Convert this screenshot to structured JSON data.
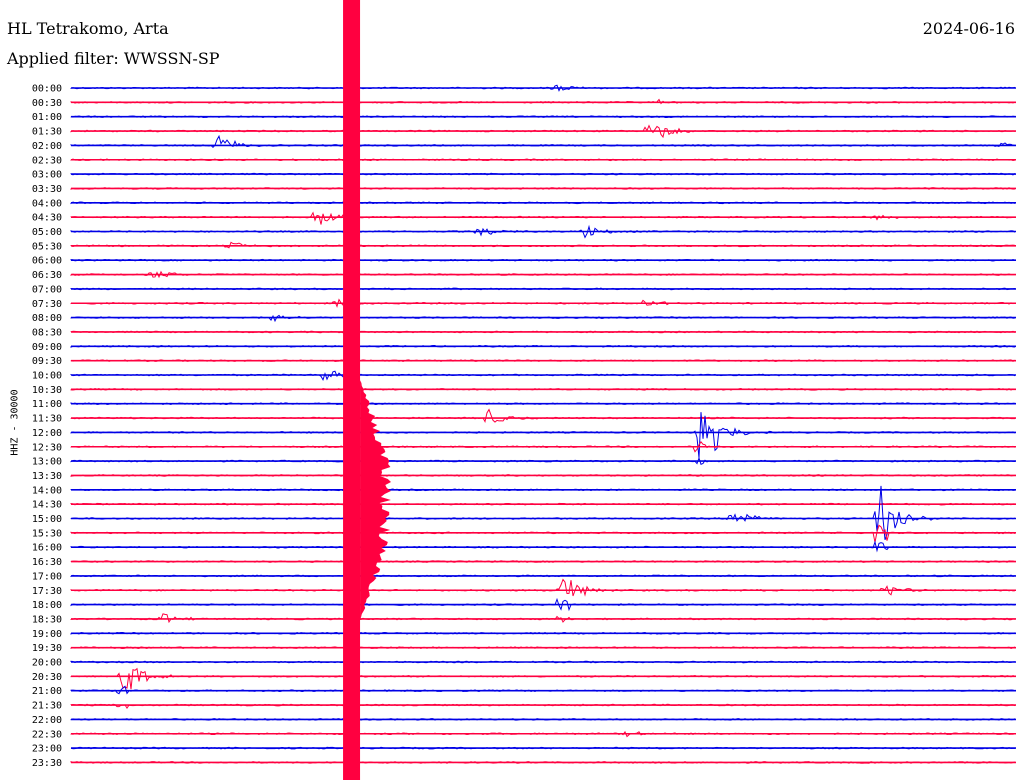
{
  "header": {
    "station": "HL Tetrakomo, Arta",
    "date": "2024-06-16",
    "filter_label": "Applied filter: WWSSN-SP"
  },
  "colors": {
    "blue": "#0000e6",
    "red": "#ff0040"
  },
  "chart_data": {
    "type": "line",
    "title": "",
    "ylabel": "HHZ - 30000",
    "row_labels": [
      "00:00",
      "00:30",
      "01:00",
      "01:30",
      "02:00",
      "02:30",
      "03:00",
      "03:30",
      "04:00",
      "04:30",
      "05:00",
      "05:30",
      "06:00",
      "06:30",
      "07:00",
      "07:30",
      "08:00",
      "08:30",
      "09:00",
      "09:30",
      "10:00",
      "10:30",
      "11:00",
      "11:30",
      "12:00",
      "12:30",
      "13:00",
      "13:30",
      "14:00",
      "14:30",
      "15:00",
      "15:30",
      "16:00",
      "16:30",
      "17:00",
      "17:30",
      "18:00",
      "18:30",
      "19:00",
      "19:30",
      "20:00",
      "20:30",
      "21:00",
      "21:30",
      "22:00",
      "22:30",
      "23:00",
      "23:30"
    ],
    "trace_colors": [
      "blue",
      "red"
    ],
    "events_minutes_into_row": [
      {
        "row": 0,
        "minute": 15.3,
        "amp": 0.4
      },
      {
        "row": 1,
        "minute": 18.6,
        "amp": 0.2
      },
      {
        "row": 3,
        "minute": 18.3,
        "amp": 1.4
      },
      {
        "row": 4,
        "minute": 4.6,
        "amp": 1.1
      },
      {
        "row": 4,
        "minute": 29.4,
        "amp": 0.3
      },
      {
        "row": 9,
        "minute": 7.7,
        "amp": 1.1
      },
      {
        "row": 9,
        "minute": 25.4,
        "amp": 0.3
      },
      {
        "row": 10,
        "minute": 12.9,
        "amp": 0.5
      },
      {
        "row": 10,
        "minute": 16.3,
        "amp": 0.6
      },
      {
        "row": 11,
        "minute": 5.0,
        "amp": 0.4
      },
      {
        "row": 13,
        "minute": 2.6,
        "amp": 0.5
      },
      {
        "row": 15,
        "minute": 8.4,
        "amp": 0.4
      },
      {
        "row": 15,
        "minute": 18.1,
        "amp": 0.4
      },
      {
        "row": 16,
        "minute": 6.2,
        "amp": 0.5
      },
      {
        "row": 20,
        "minute": 8.0,
        "amp": 0.6
      },
      {
        "row": 23,
        "minute": 13.2,
        "amp": 1.0
      },
      {
        "row": 24,
        "minute": 20.4,
        "amp": 1.2
      },
      {
        "row": 24,
        "minute": 19.9,
        "amp": 2.2
      },
      {
        "row": 30,
        "minute": 20.9,
        "amp": 1.2
      },
      {
        "row": 30,
        "minute": 25.6,
        "amp": 4.0
      },
      {
        "row": 35,
        "minute": 15.5,
        "amp": 2.0
      },
      {
        "row": 35,
        "minute": 25.8,
        "amp": 0.6
      },
      {
        "row": 37,
        "minute": 2.9,
        "amp": 0.5
      },
      {
        "row": 41,
        "minute": 1.5,
        "amp": 2.6
      },
      {
        "row": 45,
        "minute": 17.6,
        "amp": 0.3
      }
    ],
    "big_event": {
      "row_start": 0,
      "minute": 8.7,
      "note": "continuous large saturated signal down the whole record"
    }
  }
}
